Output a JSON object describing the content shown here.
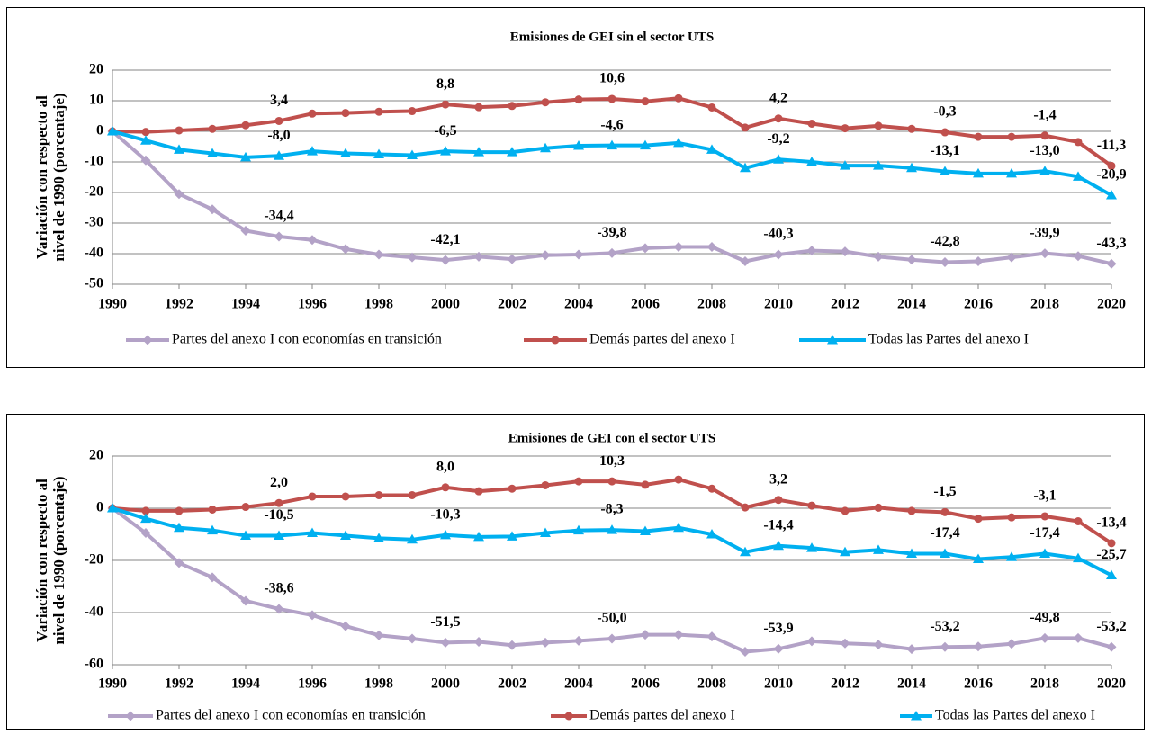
{
  "chart_data": [
    {
      "type": "line",
      "title": "Emisiones de GEI sin el sector UTS",
      "y_label": [
        "Variación con respecto al",
        "nivel de 1990 (porcentaje)"
      ],
      "x": [
        1990,
        1991,
        1992,
        1993,
        1994,
        1995,
        1996,
        1997,
        1998,
        1999,
        2000,
        2001,
        2002,
        2003,
        2004,
        2005,
        2006,
        2007,
        2008,
        2009,
        2010,
        2011,
        2012,
        2013,
        2014,
        2015,
        2016,
        2017,
        2018,
        2019,
        2020
      ],
      "xlim": [
        1990,
        2020
      ],
      "xticks": [
        1990,
        1992,
        1994,
        1996,
        1998,
        2000,
        2002,
        2004,
        2006,
        2008,
        2010,
        2012,
        2014,
        2016,
        2018,
        2020
      ],
      "ylim": [
        -50,
        20
      ],
      "yticks": [
        -50,
        -40,
        -30,
        -20,
        -10,
        0,
        10,
        20
      ],
      "grid": true,
      "series": [
        {
          "name": "Partes del anexo I con economías en transición",
          "color": "#b3a2c7",
          "marker": "diamond",
          "values": [
            0,
            -9.5,
            -20.5,
            -25.5,
            -32.5,
            -34.4,
            -35.5,
            -38.5,
            -40.3,
            -41.2,
            -42.1,
            -41,
            -41.8,
            -40.5,
            -40.3,
            -39.8,
            -38.2,
            -37.8,
            -37.8,
            -42.5,
            -40.3,
            -39,
            -39.3,
            -41,
            -42,
            -42.8,
            -42.5,
            -41.2,
            -39.9,
            -40.8,
            -43.3
          ],
          "value_labels": [
            null,
            null,
            null,
            null,
            null,
            "-34,4",
            null,
            null,
            null,
            null,
            "-42,1",
            null,
            null,
            null,
            null,
            "-39,8",
            null,
            null,
            null,
            null,
            "-40,3",
            null,
            null,
            null,
            null,
            "-42,8",
            null,
            null,
            "-39,9",
            null,
            "-43,3"
          ]
        },
        {
          "name": "Demás partes del anexo I",
          "color": "#c0504d",
          "marker": "circle",
          "values": [
            0,
            -0.2,
            0.3,
            0.8,
            2,
            3.4,
            5.8,
            6,
            6.4,
            6.6,
            8.8,
            7.9,
            8.3,
            9.5,
            10.4,
            10.6,
            9.8,
            10.8,
            7.8,
            1.2,
            4.2,
            2.5,
            1,
            1.8,
            0.8,
            -0.3,
            -1.8,
            -1.8,
            -1.4,
            -3.5,
            -11.3
          ],
          "value_labels": [
            null,
            null,
            null,
            null,
            null,
            "3,4",
            null,
            null,
            null,
            null,
            "8,8",
            null,
            null,
            null,
            null,
            "10,6",
            null,
            null,
            null,
            null,
            "4,2",
            null,
            null,
            null,
            null,
            "-0,3",
            null,
            null,
            "-1,4",
            null,
            "-11,3"
          ]
        },
        {
          "name": "Todas las Partes del anexo I",
          "color": "#00b0f0",
          "marker": "triangle",
          "values": [
            0,
            -3,
            -6,
            -7.2,
            -8.5,
            -8.0,
            -6.5,
            -7.2,
            -7.5,
            -7.8,
            -6.5,
            -6.8,
            -6.8,
            -5.5,
            -4.7,
            -4.6,
            -4.6,
            -3.8,
            -6,
            -12,
            -9.2,
            -10,
            -11.2,
            -11.2,
            -12,
            -13.1,
            -13.8,
            -13.8,
            -13.0,
            -14.8,
            -20.9
          ],
          "value_labels": [
            null,
            null,
            null,
            null,
            null,
            "-8,0",
            null,
            null,
            null,
            null,
            "-6,5",
            null,
            null,
            null,
            null,
            "-4,6",
            null,
            null,
            null,
            null,
            "-9,2",
            null,
            null,
            null,
            null,
            "-13,1",
            null,
            null,
            "-13,0",
            null,
            "-20,9"
          ]
        }
      ]
    },
    {
      "type": "line",
      "title": "Emisiones de GEI con el sector UTS",
      "y_label": [
        "Variación con respecto al",
        "nivel de 1990 (porcentaje)"
      ],
      "x": [
        1990,
        1991,
        1992,
        1993,
        1994,
        1995,
        1996,
        1997,
        1998,
        1999,
        2000,
        2001,
        2002,
        2003,
        2004,
        2005,
        2006,
        2007,
        2008,
        2009,
        2010,
        2011,
        2012,
        2013,
        2014,
        2015,
        2016,
        2017,
        2018,
        2019,
        2020
      ],
      "xlim": [
        1990,
        2020
      ],
      "xticks": [
        1990,
        1992,
        1994,
        1996,
        1998,
        2000,
        2002,
        2004,
        2006,
        2008,
        2010,
        2012,
        2014,
        2016,
        2018,
        2020
      ],
      "ylim": [
        -60,
        20
      ],
      "yticks": [
        -60,
        -40,
        -20,
        0,
        20
      ],
      "grid": true,
      "series": [
        {
          "name": "Partes del anexo I con economías en transición",
          "color": "#b3a2c7",
          "marker": "diamond",
          "values": [
            0,
            -9.5,
            -21,
            -26.5,
            -35.5,
            -38.6,
            -41,
            -45.2,
            -48.7,
            -50,
            -51.5,
            -51.2,
            -52.5,
            -51.5,
            -50.8,
            -50.0,
            -48.5,
            -48.5,
            -49.2,
            -55,
            -53.9,
            -51,
            -51.8,
            -52.3,
            -54,
            -53.2,
            -53,
            -52,
            -49.8,
            -49.8,
            -53.2
          ],
          "value_labels": [
            null,
            null,
            null,
            null,
            null,
            "-38,6",
            null,
            null,
            null,
            null,
            "-51,5",
            null,
            null,
            null,
            null,
            "-50,0",
            null,
            null,
            null,
            null,
            "-53,9",
            null,
            null,
            null,
            null,
            "-53,2",
            null,
            null,
            "-49,8",
            null,
            "-53,2"
          ]
        },
        {
          "name": "Demás partes del anexo I",
          "color": "#c0504d",
          "marker": "circle",
          "values": [
            0,
            -1,
            -1,
            -0.5,
            0.5,
            2.0,
            4.5,
            4.5,
            5,
            5,
            8.0,
            6.5,
            7.5,
            8.8,
            10.3,
            10.3,
            9,
            11,
            7.5,
            0.3,
            3.2,
            1,
            -1,
            0.2,
            -1,
            -1.5,
            -4,
            -3.5,
            -3.1,
            -5,
            -13.4
          ],
          "value_labels": [
            null,
            null,
            null,
            null,
            null,
            "2,0",
            null,
            null,
            null,
            null,
            "8,0",
            null,
            null,
            null,
            null,
            "10,3",
            null,
            null,
            null,
            null,
            "3,2",
            null,
            null,
            null,
            null,
            "-1,5",
            null,
            null,
            "-3,1",
            null,
            "-13,4"
          ]
        },
        {
          "name": "Todas las Partes del anexo I",
          "color": "#00b0f0",
          "marker": "triangle",
          "values": [
            0,
            -4,
            -7.5,
            -8.5,
            -10.5,
            -10.5,
            -9.5,
            -10.5,
            -11.5,
            -12,
            -10.3,
            -11,
            -10.8,
            -9.5,
            -8.5,
            -8.3,
            -8.8,
            -7.5,
            -10,
            -16.8,
            -14.4,
            -15.2,
            -16.8,
            -16,
            -17.4,
            -17.4,
            -19.5,
            -18.7,
            -17.4,
            -19.2,
            -25.7
          ],
          "value_labels": [
            null,
            null,
            null,
            null,
            null,
            "-10,5",
            null,
            null,
            null,
            null,
            "-10,3",
            null,
            null,
            null,
            null,
            "-8,3",
            null,
            null,
            null,
            null,
            "-14,4",
            null,
            null,
            null,
            null,
            "-17,4",
            null,
            null,
            "-17,4",
            null,
            "-25,7"
          ]
        }
      ]
    }
  ]
}
